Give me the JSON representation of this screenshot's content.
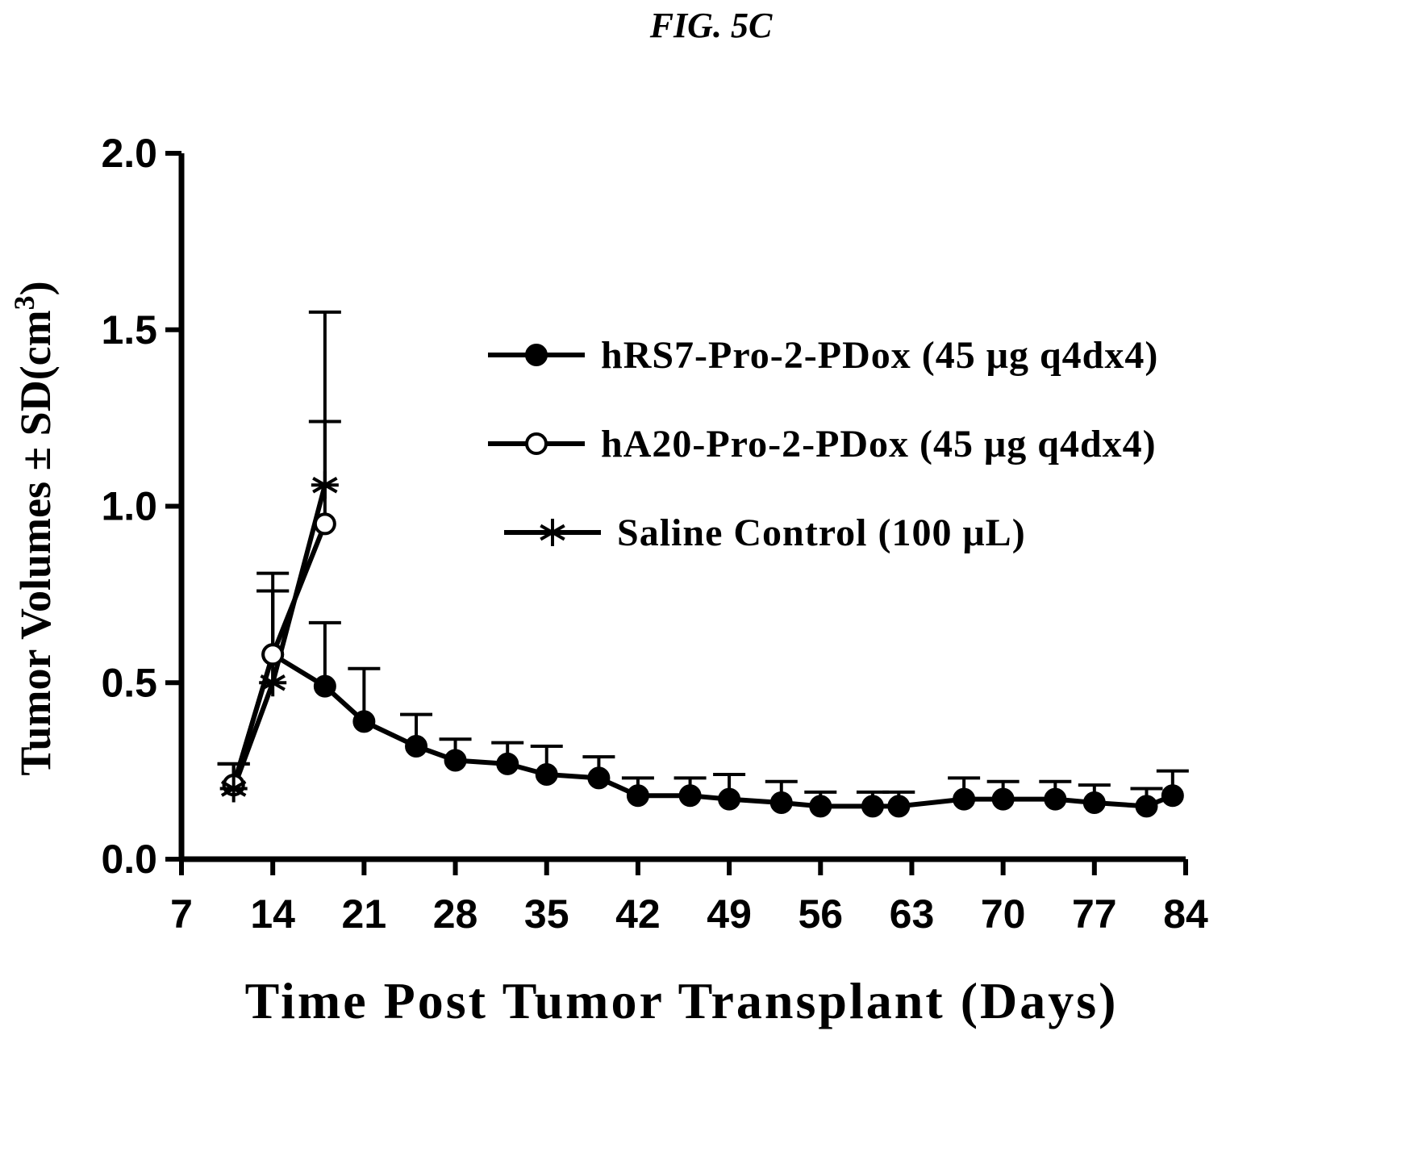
{
  "figure": {
    "label": "FIG. 5C"
  },
  "chart_data": {
    "type": "line",
    "title": "",
    "xlabel": "Time Post Tumor Transplant (Days)",
    "ylabel": "Tumor Volumes ± SD(cm",
    "ylabel_superscript": "3",
    "ylabel_suffix": ")",
    "xlim": [
      7,
      84
    ],
    "ylim": [
      0.0,
      2.0
    ],
    "x_ticks": [
      7,
      14,
      21,
      28,
      35,
      42,
      49,
      56,
      63,
      70,
      77,
      84
    ],
    "x_tick_labels": [
      "7",
      "14",
      "21",
      "28",
      "35",
      "42",
      "49",
      "56",
      "63",
      "70",
      "77",
      "84"
    ],
    "y_ticks": [
      0.0,
      0.5,
      1.0,
      1.5,
      2.0
    ],
    "y_tick_labels": [
      "0.0",
      "0.5",
      "1.0",
      "1.5",
      "2.0"
    ],
    "grid": false,
    "legend_position": "right",
    "series": [
      {
        "name": "hRS7-Pro-2-PDox (45 μg q4dx4)",
        "marker": "filled-circle",
        "x": [
          11,
          14,
          18,
          21,
          25,
          28,
          32,
          35,
          39,
          42,
          46,
          49,
          53,
          56,
          60,
          62,
          67,
          70,
          74,
          77,
          81,
          83
        ],
        "y": [
          0.21,
          0.58,
          0.49,
          0.39,
          0.32,
          0.28,
          0.27,
          0.24,
          0.23,
          0.18,
          0.18,
          0.17,
          0.16,
          0.15,
          0.15,
          0.15,
          0.17,
          0.17,
          0.17,
          0.16,
          0.15,
          0.18
        ],
        "sd": [
          0.06,
          0.18,
          0.18,
          0.15,
          0.09,
          0.06,
          0.06,
          0.08,
          0.06,
          0.05,
          0.05,
          0.07,
          0.06,
          0.04,
          0.04,
          0.04,
          0.06,
          0.05,
          0.05,
          0.05,
          0.05,
          0.07
        ]
      },
      {
        "name": "hA20-Pro-2-PDox (45 μg q4dx4)",
        "marker": "open-circle",
        "x": [
          11,
          14,
          18
        ],
        "y": [
          0.21,
          0.58,
          0.95
        ],
        "sd": [
          0.06,
          0.23,
          0.29
        ]
      },
      {
        "name": "Saline Control (100 μL)",
        "marker": "asterisk",
        "x": [
          11,
          14,
          18
        ],
        "y": [
          0.2,
          0.5,
          1.06
        ],
        "sd": [
          0.07,
          0.26,
          0.49
        ]
      }
    ]
  }
}
